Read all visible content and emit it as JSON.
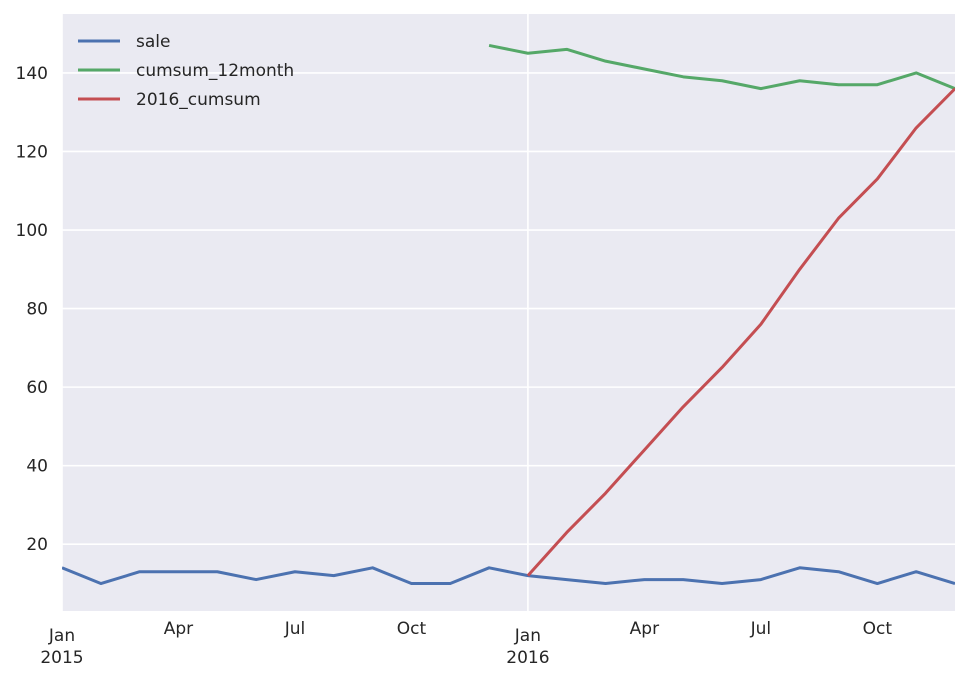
{
  "chart_data": {
    "type": "line",
    "title": "",
    "xlabel": "",
    "ylabel": "",
    "x": [
      "2015-01",
      "2015-02",
      "2015-03",
      "2015-04",
      "2015-05",
      "2015-06",
      "2015-07",
      "2015-08",
      "2015-09",
      "2015-10",
      "2015-11",
      "2015-12",
      "2016-01",
      "2016-02",
      "2016-03",
      "2016-04",
      "2016-05",
      "2016-06",
      "2016-07",
      "2016-08",
      "2016-09",
      "2016-10",
      "2016-11",
      "2016-12"
    ],
    "xlim": [
      "2015-01",
      "2016-12"
    ],
    "ylim": [
      3,
      155
    ],
    "yticks": [
      20,
      40,
      60,
      80,
      100,
      120,
      140
    ],
    "ytick_labels": [
      "20",
      "40",
      "60",
      "80",
      "100",
      "120",
      "140"
    ],
    "xticks": [
      {
        "x": "2015-01",
        "label": "Jan",
        "sublabel": "2015"
      },
      {
        "x": "2015-04",
        "label": "Apr",
        "sublabel": ""
      },
      {
        "x": "2015-07",
        "label": "Jul",
        "sublabel": ""
      },
      {
        "x": "2015-10",
        "label": "Oct",
        "sublabel": ""
      },
      {
        "x": "2016-01",
        "label": "Jan",
        "sublabel": "2016"
      },
      {
        "x": "2016-04",
        "label": "Apr",
        "sublabel": ""
      },
      {
        "x": "2016-07",
        "label": "Jul",
        "sublabel": ""
      },
      {
        "x": "2016-10",
        "label": "Oct",
        "sublabel": ""
      }
    ],
    "grid": true,
    "legend_position": "upper-left",
    "series": [
      {
        "name": "sale",
        "color": "#4c72b0",
        "values": [
          14,
          10,
          13,
          13,
          13,
          11,
          13,
          12,
          14,
          10,
          10,
          14,
          12,
          11,
          10,
          11,
          11,
          10,
          11,
          14,
          13,
          10,
          13,
          10
        ]
      },
      {
        "name": "cumsum_12month",
        "color": "#55a868",
        "values": [
          null,
          null,
          null,
          null,
          null,
          null,
          null,
          null,
          null,
          null,
          null,
          147,
          145,
          146,
          143,
          141,
          139,
          138,
          136,
          138,
          137,
          137,
          140,
          136
        ]
      },
      {
        "name": "2016_cumsum",
        "color": "#c44e52",
        "values": [
          null,
          null,
          null,
          null,
          null,
          null,
          null,
          null,
          null,
          null,
          null,
          null,
          12,
          23,
          33,
          44,
          55,
          65,
          76,
          90,
          103,
          113,
          126,
          136
        ]
      }
    ]
  }
}
